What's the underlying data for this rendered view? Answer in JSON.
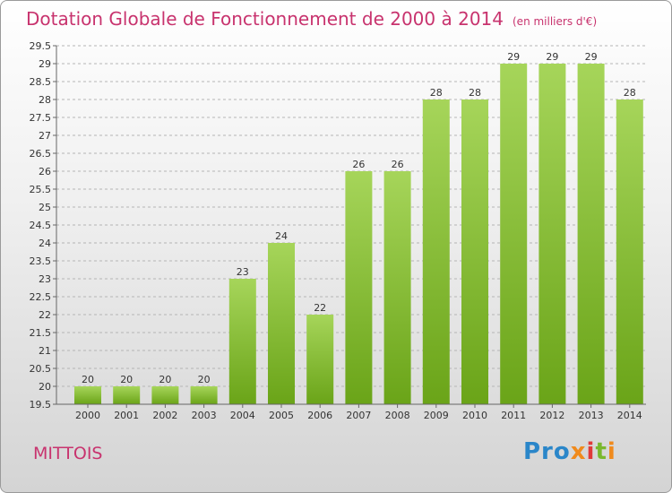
{
  "header": {
    "title": "Dotation Globale de Fonctionnement de 2000 à 2014",
    "subtitle": "(en milliers d'€)"
  },
  "footer": {
    "town": "MITTOIS",
    "logo": {
      "p1": "Pro",
      "x": "x",
      "i1": "i",
      "t": "t",
      "i2": "i"
    }
  },
  "colors": {
    "title": "#c8336e",
    "bar_light": "#a6d55a",
    "bar_dark": "#6aa418",
    "logo_blue": "#2a86c9",
    "logo_orange": "#f08a1c",
    "logo_red": "#e03a3a",
    "logo_green": "#7ab82e"
  },
  "chart_data": {
    "type": "bar",
    "categories": [
      "2000",
      "2001",
      "2002",
      "2003",
      "2004",
      "2005",
      "2006",
      "2007",
      "2008",
      "2009",
      "2010",
      "2011",
      "2012",
      "2013",
      "2014"
    ],
    "values": [
      20,
      20,
      20,
      20,
      23,
      24,
      22,
      26,
      26,
      28,
      28,
      29,
      29,
      29,
      28
    ],
    "ylim": [
      19.5,
      29.5
    ],
    "yticks": [
      "19.5",
      "20",
      "20.5",
      "21",
      "21.5",
      "22",
      "22.5",
      "23",
      "23.5",
      "24",
      "24.5",
      "25",
      "25.5",
      "26",
      "26.5",
      "27",
      "27.5",
      "28",
      "28.5",
      "29",
      "29.5"
    ],
    "grid": true,
    "xlabel": "",
    "ylabel": ""
  }
}
